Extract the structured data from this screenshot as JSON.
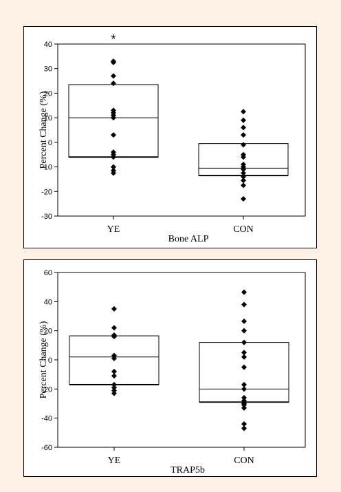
{
  "chart_data": [
    {
      "type": "box",
      "xlabel": "Bone ALP",
      "ylabel": "Percent Change (%)",
      "ylim": [
        -30,
        40
      ],
      "yticks": [
        40,
        30,
        20,
        10,
        0,
        -10,
        -20,
        -30
      ],
      "categories": [
        "YE",
        "CON"
      ],
      "annotation": "*",
      "grid": false,
      "boxes": [
        {
          "q1": -6,
          "median": 10,
          "q3": 23.5
        },
        {
          "q1": -13.5,
          "median": -10.5,
          "q3": -0.5
        }
      ],
      "points": [
        [
          33,
          32.5,
          27,
          24,
          13,
          12,
          11,
          10,
          3,
          -4,
          -5,
          -6,
          -10,
          -11.5,
          -12.5
        ],
        [
          12.5,
          9,
          6,
          3,
          -1,
          -5,
          -6,
          -9,
          -10,
          -11,
          -12.5,
          -14,
          -15.5,
          -17.5,
          -23
        ]
      ]
    },
    {
      "type": "box",
      "xlabel": "TRAP5b",
      "ylabel": "Percent Change (%)",
      "ylim": [
        -60,
        60
      ],
      "yticks": [
        60,
        40,
        20,
        0,
        -20,
        -40,
        -60
      ],
      "categories": [
        "YE",
        "CON"
      ],
      "grid": false,
      "boxes": [
        {
          "q1": -17,
          "median": 2,
          "q3": 16.5
        },
        {
          "q1": -29,
          "median": -20,
          "q3": 12
        }
      ],
      "points": [
        [
          35,
          22,
          17,
          16,
          3,
          1,
          -8,
          -11,
          -17,
          -19,
          -21,
          -23
        ],
        [
          46.5,
          38,
          26.5,
          20,
          12,
          5,
          2,
          -5,
          -17,
          -20,
          -26,
          -28,
          -30,
          -31,
          -33,
          -44,
          -47
        ]
      ]
    }
  ]
}
